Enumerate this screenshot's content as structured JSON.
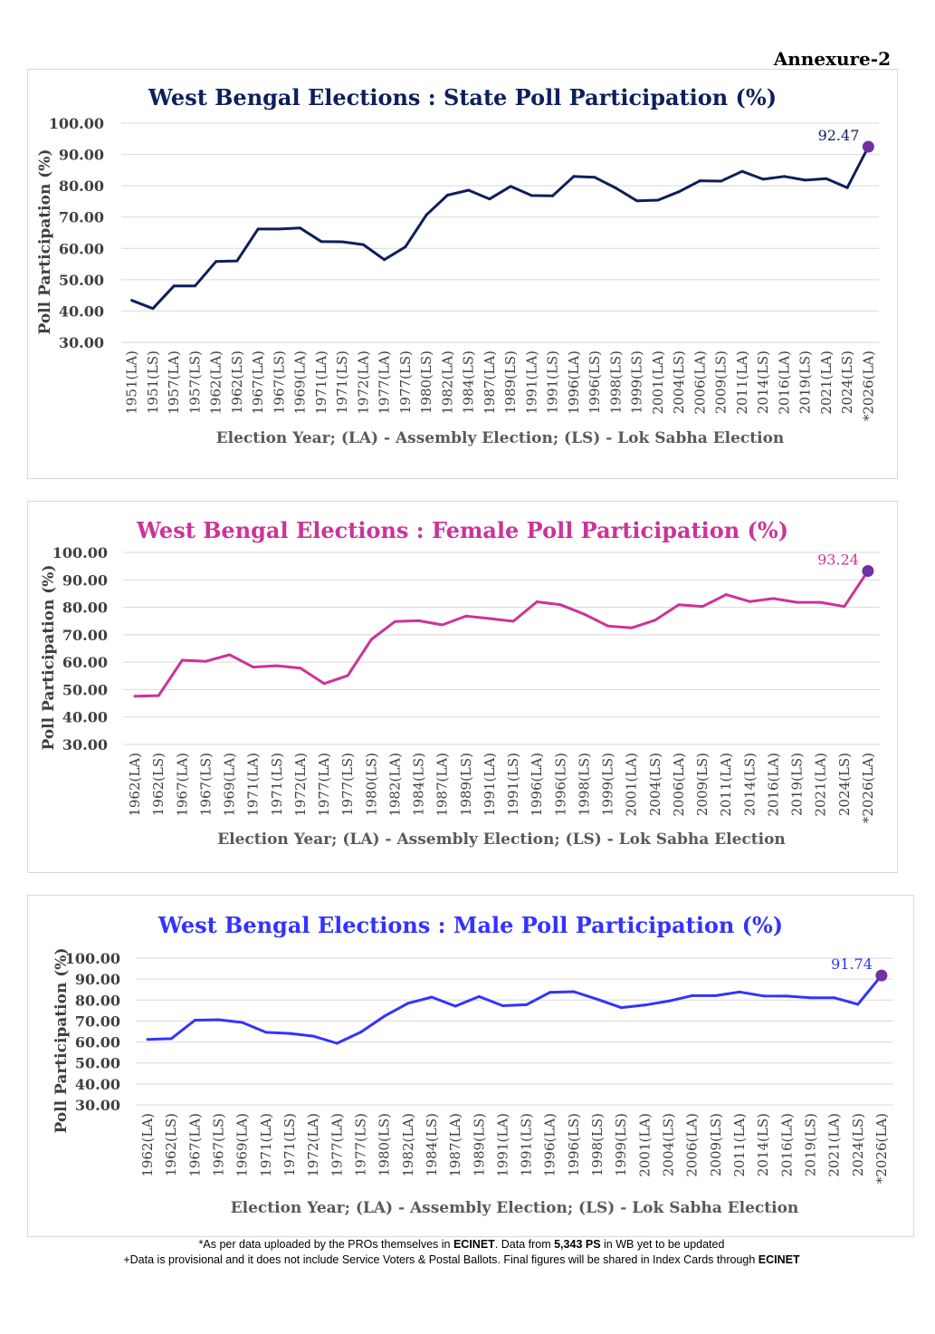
{
  "annexure": "Annexure-2",
  "footnotes": {
    "line1_a": "*As per data uploaded by the PROs themselves in ",
    "line1_b": "ECINET",
    "line1_c": ". Data from ",
    "line1_d": "5,343 PS",
    "line1_e": " in WB yet to be updated",
    "line2_a": "+Data is provisional and it does not include Service Voters & Postal Ballots. Final figures will be shared in Index Cards through ",
    "line2_b": "ECINET"
  },
  "chart_data": [
    {
      "type": "line",
      "title": "West Bengal Elections : State Poll Participation (%)",
      "xlabel": "Election Year; (LA) - Assembly Election; (LS) - Lok Sabha Election",
      "ylabel": "Poll Participation (%)",
      "ylim": [
        30,
        100
      ],
      "yticks": [
        "30.00",
        "40.00",
        "50.00",
        "60.00",
        "70.00",
        "80.00",
        "90.00",
        "100.00"
      ],
      "color": "#0d1f5c",
      "grid": true,
      "categories": [
        "1951(LA)",
        "1951(LS)",
        "1957(LA)",
        "1957(LS)",
        "1962(LA)",
        "1962(LS)",
        "1967(LA)",
        "1967(LS)",
        "1969(LA)",
        "1971(LA)",
        "1971(LS)",
        "1972(LA)",
        "1977(LA)",
        "1977(LS)",
        "1980(LS)",
        "1982(LA)",
        "1984(LS)",
        "1987(LA)",
        "1989(LS)",
        "1991(LA)",
        "1991(LS)",
        "1996(LA)",
        "1996(LS)",
        "1998(LS)",
        "1999(LS)",
        "2001(LA)",
        "2004(LS)",
        "2006(LA)",
        "2009(LS)",
        "2011(LA)",
        "2014(LS)",
        "2016(LA)",
        "2019(LS)",
        "2021(LA)",
        "2024(LS)",
        "*2026(LA)"
      ],
      "values": [
        43.4,
        40.8,
        48.0,
        48.0,
        55.8,
        56.0,
        66.2,
        66.2,
        66.5,
        62.2,
        62.1,
        61.2,
        56.4,
        60.5,
        70.7,
        77.0,
        78.6,
        75.8,
        79.8,
        76.9,
        76.8,
        83.0,
        82.7,
        79.3,
        75.2,
        75.4,
        78.1,
        81.6,
        81.5,
        84.6,
        82.1,
        83.0,
        81.8,
        82.3,
        79.4,
        92.47
      ],
      "annotation": {
        "label": "92.47",
        "index": 35,
        "marker_color": "#7030a0"
      }
    },
    {
      "type": "line",
      "title": "West Bengal Elections : Female Poll Participation (%)",
      "xlabel": "Election Year; (LA) - Assembly Election; (LS) - Lok Sabha Election",
      "ylabel": "Poll Participation (%)",
      "ylim": [
        30,
        100
      ],
      "yticks": [
        "30.00",
        "40.00",
        "50.00",
        "60.00",
        "70.00",
        "80.00",
        "90.00",
        "100.00"
      ],
      "color": "#cc3399",
      "grid": true,
      "categories": [
        "1962(LA)",
        "1962(LS)",
        "1967(LA)",
        "1967(LS)",
        "1969(LA)",
        "1971(LA)",
        "1971(LS)",
        "1972(LA)",
        "1977(LA)",
        "1977(LS)",
        "1980(LS)",
        "1982(LA)",
        "1984(LS)",
        "1987(LA)",
        "1989(LS)",
        "1991(LA)",
        "1991(LS)",
        "1996(LA)",
        "1996(LS)",
        "1998(LS)",
        "1999(LS)",
        "2001(LA)",
        "2004(LS)",
        "2006(LA)",
        "2009(LS)",
        "2011(LA)",
        "2014(LS)",
        "2016(LA)",
        "2019(LS)",
        "2021(LA)",
        "2024(LS)",
        "*2026(LA)"
      ],
      "values": [
        47.6,
        47.8,
        60.7,
        60.3,
        62.7,
        58.2,
        58.7,
        57.8,
        52.2,
        55.1,
        68.3,
        74.8,
        75.1,
        73.6,
        76.8,
        75.9,
        74.9,
        82.0,
        80.9,
        77.5,
        73.2,
        72.5,
        75.3,
        80.9,
        80.3,
        84.6,
        82.1,
        83.2,
        81.8,
        81.8,
        80.3,
        93.24
      ],
      "annotation": {
        "label": "93.24",
        "index": 31,
        "marker_color": "#7030a0"
      }
    },
    {
      "type": "line",
      "title": "West Bengal Elections : Male Poll Participation (%)",
      "xlabel": "Election Year; (LA) - Assembly Election; (LS) - Lok Sabha Election",
      "ylabel": "Poll Participation (%)",
      "ylim": [
        30,
        100
      ],
      "yticks": [
        "30.00",
        "40.00",
        "50.00",
        "60.00",
        "70.00",
        "80.00",
        "90.00",
        "100.00"
      ],
      "color": "#3333ff",
      "grid": true,
      "categories": [
        "1962(LA)",
        "1962(LS)",
        "1967(LA)",
        "1967(LS)",
        "1969(LA)",
        "1971(LA)",
        "1971(LS)",
        "1972(LA)",
        "1977(LA)",
        "1977(LS)",
        "1980(LS)",
        "1982(LA)",
        "1984(LS)",
        "1987(LA)",
        "1989(LS)",
        "1991(LA)",
        "1991(LS)",
        "1996(LA)",
        "1996(LS)",
        "1998(LS)",
        "1999(LS)",
        "2001(LA)",
        "2004(LS)",
        "2006(LA)",
        "2009(LS)",
        "2011(LA)",
        "2014(LS)",
        "2016(LA)",
        "2019(LS)",
        "2021(LA)",
        "2024(LS)",
        "*2026(LA)"
      ],
      "values": [
        61.2,
        61.6,
        70.4,
        70.6,
        69.3,
        64.6,
        64.1,
        62.8,
        59.4,
        64.7,
        72.3,
        78.5,
        81.4,
        77.1,
        81.7,
        77.3,
        77.8,
        83.7,
        84.0,
        80.4,
        76.4,
        77.6,
        79.5,
        82.1,
        82.1,
        83.9,
        82.0,
        81.9,
        81.1,
        81.1,
        78.0,
        91.74
      ],
      "annotation": {
        "label": "91.74",
        "index": 31,
        "marker_color": "#7030a0"
      }
    }
  ]
}
